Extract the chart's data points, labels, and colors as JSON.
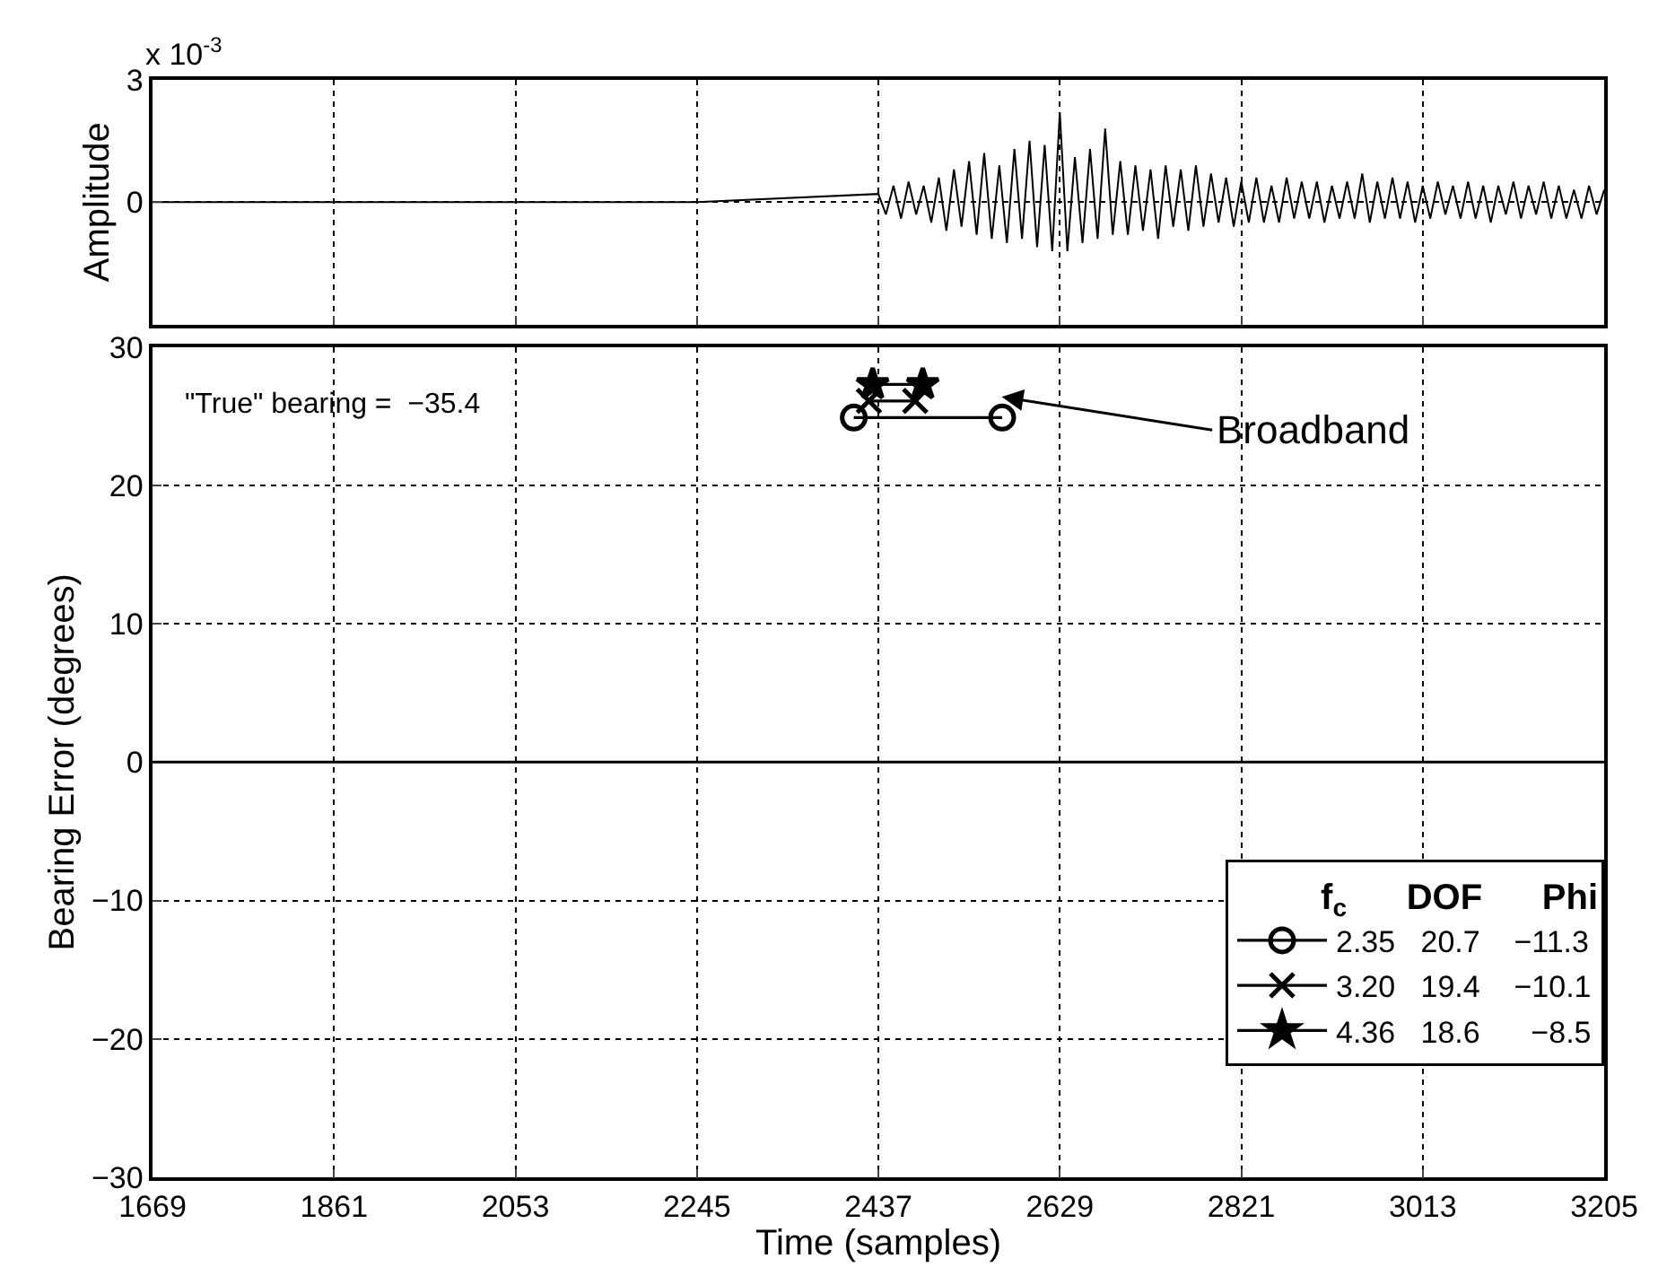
{
  "chart_data": [
    {
      "type": "line",
      "ylabel": "Amplitude",
      "annotations": [
        "x 10$^{-3}$"
      ],
      "grid": true,
      "tick_labels": "y",
      "marker": "none",
      "xlim": [
        1669,
        3205
      ],
      "xticks": [
        {
          "value": 1669,
          "label": null
        },
        {
          "value": 1861,
          "label": null
        },
        {
          "value": 2053,
          "label": null
        },
        {
          "value": 2245,
          "label": null
        },
        {
          "value": 2437,
          "label": null
        },
        {
          "value": 2629,
          "label": null
        },
        {
          "value": 2821,
          "label": null
        },
        {
          "value": 3013,
          "label": null
        },
        {
          "value": 3205,
          "label": null
        }
      ],
      "ylim": [
        -3,
        3
      ],
      "yticks": [
        0,
        3
      ],
      "x": [
        1669,
        2245,
        2437,
        2445,
        2453,
        2461,
        2469,
        2477,
        2485,
        2493,
        2501,
        2509,
        2517,
        2525,
        2533,
        2541,
        2549,
        2557,
        2565,
        2573,
        2581,
        2589,
        2597,
        2605,
        2613,
        2621,
        2629,
        2637,
        2645,
        2653,
        2661,
        2669,
        2677,
        2685,
        2693,
        2701,
        2709,
        2717,
        2725,
        2733,
        2741,
        2749,
        2757,
        2765,
        2773,
        2781,
        2789,
        2797,
        2805,
        2813,
        2821,
        2829,
        2837,
        2845,
        2853,
        2861,
        2869,
        2877,
        2885,
        2893,
        2901,
        2909,
        2917,
        2925,
        2933,
        2941,
        2949,
        2957,
        2965,
        2973,
        2981,
        2989,
        2997,
        3005,
        3013,
        3021,
        3029,
        3037,
        3045,
        3053,
        3061,
        3069,
        3077,
        3085,
        3093,
        3101,
        3109,
        3117,
        3125,
        3133,
        3141,
        3149,
        3157,
        3165,
        3173,
        3181,
        3189,
        3197,
        3205
      ],
      "series": [
        {
          "color": "#000000",
          "values": [
            0,
            0,
            0.2,
            -0.3,
            0.4,
            -0.4,
            0.5,
            -0.3,
            0.4,
            -0.5,
            0.6,
            -0.7,
            0.8,
            -0.6,
            1.0,
            -0.8,
            1.2,
            -0.9,
            0.9,
            -1.0,
            1.3,
            -0.9,
            1.5,
            -1.1,
            1.4,
            -1.2,
            2.2,
            -1.2,
            1.1,
            -1.0,
            1.3,
            -0.9,
            1.8,
            -0.8,
            1.0,
            -0.8,
            0.9,
            -0.7,
            0.8,
            -0.9,
            0.9,
            -0.6,
            0.8,
            -0.7,
            0.9,
            -0.6,
            0.7,
            -0.5,
            0.6,
            -0.6,
            0.5,
            -0.5,
            0.6,
            -0.5,
            0.4,
            -0.5,
            0.6,
            -0.4,
            0.5,
            -0.4,
            0.5,
            -0.5,
            0.4,
            -0.4,
            0.5,
            -0.4,
            0.7,
            -0.5,
            0.5,
            -0.4,
            0.6,
            -0.4,
            0.5,
            -0.5,
            0.4,
            -0.4,
            0.5,
            -0.3,
            0.4,
            -0.4,
            0.5,
            -0.4,
            0.4,
            -0.5,
            0.4,
            -0.3,
            0.5,
            -0.4,
            0.4,
            -0.3,
            0.5,
            -0.4,
            0.4,
            -0.4,
            0.3,
            -0.4,
            0.4,
            -0.3,
            0.3
          ]
        }
      ]
    },
    {
      "type": "line",
      "xlabel": "Time (samples)",
      "ylabel": "Bearing Error (degrees)",
      "grid": true,
      "legend": "bottom right",
      "legend_title": "f$_{c}$      DOF      Phi",
      "annotations": [
        "\"True\" bearing =  −35.4",
        "Broadband"
      ],
      "xlim": [
        1669,
        3205
      ],
      "xticks": [
        1669,
        1861,
        2053,
        2245,
        2437,
        2629,
        2821,
        3013,
        3205
      ],
      "ylim": [
        -30,
        30
      ],
      "yticks": [
        -30,
        -20,
        -10,
        0,
        10,
        20,
        30
      ],
      "ref_lines": [
        {
          "axis": "y",
          "value": 0,
          "color": "#000000"
        }
      ],
      "series": [
        {
          "name": "2.35   20.7    −11.3",
          "color": "#000000",
          "marker": "circle",
          "x": [
            2411,
            2568
          ],
          "values": [
            24.9,
            24.9
          ]
        },
        {
          "name": "3.20   19.4    −10.1",
          "color": "#000000",
          "marker": "cross",
          "x": [
            2427,
            2476
          ],
          "values": [
            26.1,
            26.1
          ]
        },
        {
          "name": "4.36   18.6      −8.5",
          "color": "#000000",
          "marker": "star",
          "x": [
            2431,
            2484
          ],
          "values": [
            27.3,
            27.3
          ]
        }
      ]
    }
  ]
}
